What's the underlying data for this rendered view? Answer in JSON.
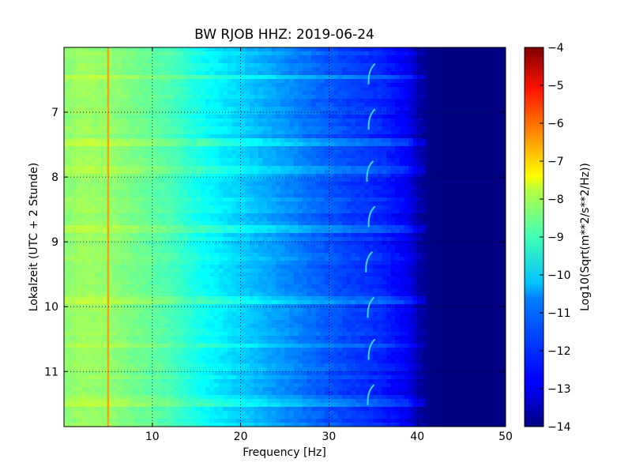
{
  "chart_data": {
    "type": "heatmap",
    "title": "BW RJOB HHZ: 2019-06-24",
    "xlabel": "Frequency [Hz]",
    "ylabel": "Lokalzeit (UTC + 2 Stunde)",
    "xlim": [
      0,
      50
    ],
    "ylim": [
      11.85,
      6.0
    ],
    "y_inverted": true,
    "xticks": [
      10,
      20,
      30,
      40,
      50
    ],
    "yticks": [
      7,
      8,
      9,
      10,
      11
    ],
    "grid": true,
    "colorbar": {
      "label": "Log10(Sqrt(m**2/s**2/Hz))",
      "range": [
        -14,
        -4
      ],
      "ticks": [
        -4,
        -5,
        -6,
        -7,
        -8,
        -9,
        -10,
        -11,
        -12,
        -13,
        -14
      ],
      "colormap": "jet"
    },
    "spectrum_profile": [
      {
        "freq": 0.0,
        "value": -8.9
      },
      {
        "freq": 2.0,
        "value": -8.7
      },
      {
        "freq": 5.0,
        "value": -8.8
      },
      {
        "freq": 8.0,
        "value": -9.1
      },
      {
        "freq": 12.0,
        "value": -9.5
      },
      {
        "freq": 16.0,
        "value": -10.2
      },
      {
        "freq": 20.0,
        "value": -10.7
      },
      {
        "freq": 24.0,
        "value": -11.2
      },
      {
        "freq": 28.0,
        "value": -11.7
      },
      {
        "freq": 32.0,
        "value": -12.1
      },
      {
        "freq": 36.0,
        "value": -12.4
      },
      {
        "freq": 39.0,
        "value": -12.9
      },
      {
        "freq": 40.5,
        "value": -13.7
      },
      {
        "freq": 42.0,
        "value": -14.0
      },
      {
        "freq": 50.0,
        "value": -14.0
      }
    ],
    "spectral_lines": [
      {
        "freq": 5.0,
        "value": -6.7
      }
    ],
    "whistles": [
      {
        "freq": 34.5,
        "time": 6.4
      },
      {
        "freq": 34.5,
        "time": 7.1
      },
      {
        "freq": 34.3,
        "time": 7.9
      },
      {
        "freq": 34.5,
        "time": 8.6
      },
      {
        "freq": 34.2,
        "time": 9.3
      },
      {
        "freq": 34.4,
        "time": 10.0
      },
      {
        "freq": 34.5,
        "time": 10.65
      },
      {
        "freq": 34.4,
        "time": 11.35
      }
    ],
    "bright_bands_time": [
      6.45,
      7.45,
      7.9,
      8.8,
      9.9,
      10.6,
      11.5
    ]
  }
}
